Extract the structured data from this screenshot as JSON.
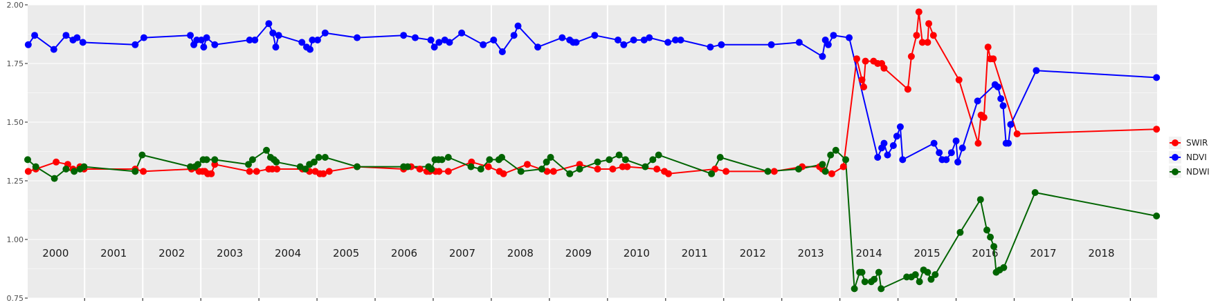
{
  "chart_data": {
    "type": "line",
    "title": "",
    "xlabel": "",
    "ylabel": "",
    "ylim": [
      0.75,
      2.0
    ],
    "xlim": [
      1999.52,
      2018.96
    ],
    "y_ticks": [
      "0.75",
      "1.00",
      "1.25",
      "1.50",
      "1.75",
      "2.00"
    ],
    "y_tick_values": [
      0.75,
      1.0,
      1.25,
      1.5,
      1.75,
      2.0
    ],
    "year_labels": [
      "2000",
      "2001",
      "2002",
      "2003",
      "2004",
      "2005",
      "2006",
      "2007",
      "2008",
      "2009",
      "2010",
      "2011",
      "2012",
      "2013",
      "2014",
      "2015",
      "2016",
      "2017",
      "2018"
    ],
    "grid": true,
    "legend_position": "right",
    "series": [
      {
        "name": "SWIR",
        "color": "#ff0000",
        "points": [
          [
            1999.53,
            1.29
          ],
          [
            1999.66,
            1.3
          ],
          [
            2000.01,
            1.33
          ],
          [
            2000.21,
            1.32
          ],
          [
            2000.3,
            1.3
          ],
          [
            2000.42,
            1.31
          ],
          [
            2000.49,
            1.3
          ],
          [
            2001.37,
            1.3
          ],
          [
            2001.51,
            1.29
          ],
          [
            2002.34,
            1.3
          ],
          [
            2002.47,
            1.29
          ],
          [
            2002.53,
            1.29
          ],
          [
            2002.57,
            1.29
          ],
          [
            2002.62,
            1.28
          ],
          [
            2002.68,
            1.28
          ],
          [
            2002.74,
            1.32
          ],
          [
            2003.34,
            1.29
          ],
          [
            2003.46,
            1.29
          ],
          [
            2003.67,
            1.3
          ],
          [
            2003.73,
            1.3
          ],
          [
            2003.81,
            1.3
          ],
          [
            2004.25,
            1.3
          ],
          [
            2004.37,
            1.29
          ],
          [
            2004.47,
            1.29
          ],
          [
            2004.55,
            1.28
          ],
          [
            2004.61,
            1.28
          ],
          [
            2004.71,
            1.29
          ],
          [
            2005.19,
            1.31
          ],
          [
            2005.99,
            1.3
          ],
          [
            2006.12,
            1.31
          ],
          [
            2006.27,
            1.3
          ],
          [
            2006.39,
            1.29
          ],
          [
            2006.44,
            1.29
          ],
          [
            2006.54,
            1.29
          ],
          [
            2006.6,
            1.29
          ],
          [
            2006.76,
            1.29
          ],
          [
            2007.16,
            1.33
          ],
          [
            2007.45,
            1.31
          ],
          [
            2007.64,
            1.29
          ],
          [
            2007.71,
            1.28
          ],
          [
            2008.12,
            1.32
          ],
          [
            2008.46,
            1.29
          ],
          [
            2008.57,
            1.29
          ],
          [
            2009.02,
            1.32
          ],
          [
            2009.33,
            1.3
          ],
          [
            2009.59,
            1.3
          ],
          [
            2009.76,
            1.31
          ],
          [
            2009.84,
            1.31
          ],
          [
            2010.35,
            1.3
          ],
          [
            2010.48,
            1.29
          ],
          [
            2010.55,
            1.28
          ],
          [
            2011.35,
            1.3
          ],
          [
            2011.54,
            1.29
          ],
          [
            2012.37,
            1.29
          ],
          [
            2012.85,
            1.31
          ],
          [
            2013.15,
            1.31
          ],
          [
            2013.2,
            1.3
          ],
          [
            2013.36,
            1.28
          ],
          [
            2013.56,
            1.31
          ],
          [
            2013.79,
            1.77
          ],
          [
            2013.88,
            1.68
          ],
          [
            2013.91,
            1.65
          ],
          [
            2013.94,
            1.76
          ],
          [
            2014.08,
            1.76
          ],
          [
            2014.15,
            1.75
          ],
          [
            2014.22,
            1.75
          ],
          [
            2014.26,
            1.73
          ],
          [
            2014.67,
            1.64
          ],
          [
            2014.73,
            1.78
          ],
          [
            2014.82,
            1.87
          ],
          [
            2014.86,
            1.97
          ],
          [
            2014.92,
            1.84
          ],
          [
            2015.01,
            1.84
          ],
          [
            2015.03,
            1.92
          ],
          [
            2015.11,
            1.87
          ],
          [
            2015.55,
            1.68
          ],
          [
            2015.88,
            1.41
          ],
          [
            2015.93,
            1.53
          ],
          [
            2015.98,
            1.52
          ],
          [
            2016.05,
            1.82
          ],
          [
            2016.09,
            1.77
          ],
          [
            2016.14,
            1.77
          ],
          [
            2016.55,
            1.45
          ],
          [
            2018.95,
            1.47
          ]
        ]
      },
      {
        "name": "NDVI",
        "color": "#0000ff",
        "points": [
          [
            1999.53,
            1.83
          ],
          [
            1999.64,
            1.87
          ],
          [
            1999.97,
            1.81
          ],
          [
            2000.18,
            1.87
          ],
          [
            2000.3,
            1.85
          ],
          [
            2000.37,
            1.86
          ],
          [
            2000.47,
            1.84
          ],
          [
            2001.37,
            1.83
          ],
          [
            2001.52,
            1.86
          ],
          [
            2002.32,
            1.87
          ],
          [
            2002.38,
            1.83
          ],
          [
            2002.43,
            1.85
          ],
          [
            2002.51,
            1.85
          ],
          [
            2002.55,
            1.82
          ],
          [
            2002.6,
            1.86
          ],
          [
            2002.74,
            1.83
          ],
          [
            2003.34,
            1.85
          ],
          [
            2003.43,
            1.85
          ],
          [
            2003.67,
            1.92
          ],
          [
            2003.74,
            1.88
          ],
          [
            2003.79,
            1.82
          ],
          [
            2003.84,
            1.87
          ],
          [
            2004.24,
            1.84
          ],
          [
            2004.32,
            1.82
          ],
          [
            2004.38,
            1.81
          ],
          [
            2004.42,
            1.85
          ],
          [
            2004.51,
            1.85
          ],
          [
            2004.64,
            1.88
          ],
          [
            2005.19,
            1.86
          ],
          [
            2005.99,
            1.87
          ],
          [
            2006.19,
            1.86
          ],
          [
            2006.46,
            1.85
          ],
          [
            2006.52,
            1.82
          ],
          [
            2006.6,
            1.84
          ],
          [
            2006.7,
            1.85
          ],
          [
            2006.78,
            1.84
          ],
          [
            2006.99,
            1.88
          ],
          [
            2007.36,
            1.83
          ],
          [
            2007.54,
            1.85
          ],
          [
            2007.69,
            1.8
          ],
          [
            2007.89,
            1.87
          ],
          [
            2007.96,
            1.91
          ],
          [
            2008.3,
            1.82
          ],
          [
            2008.72,
            1.86
          ],
          [
            2008.85,
            1.85
          ],
          [
            2008.91,
            1.84
          ],
          [
            2008.96,
            1.84
          ],
          [
            2009.28,
            1.87
          ],
          [
            2009.68,
            1.85
          ],
          [
            2009.78,
            1.83
          ],
          [
            2009.95,
            1.85
          ],
          [
            2010.13,
            1.85
          ],
          [
            2010.22,
            1.86
          ],
          [
            2010.54,
            1.84
          ],
          [
            2010.67,
            1.85
          ],
          [
            2010.76,
            1.85
          ],
          [
            2011.27,
            1.82
          ],
          [
            2011.46,
            1.83
          ],
          [
            2012.32,
            1.83
          ],
          [
            2012.8,
            1.84
          ],
          [
            2013.2,
            1.78
          ],
          [
            2013.25,
            1.85
          ],
          [
            2013.3,
            1.83
          ],
          [
            2013.39,
            1.87
          ],
          [
            2013.66,
            1.86
          ],
          [
            2014.15,
            1.35
          ],
          [
            2014.22,
            1.39
          ],
          [
            2014.26,
            1.41
          ],
          [
            2014.32,
            1.36
          ],
          [
            2014.42,
            1.4
          ],
          [
            2014.48,
            1.44
          ],
          [
            2014.54,
            1.48
          ],
          [
            2014.58,
            1.34
          ],
          [
            2015.12,
            1.41
          ],
          [
            2015.21,
            1.37
          ],
          [
            2015.26,
            1.34
          ],
          [
            2015.33,
            1.34
          ],
          [
            2015.42,
            1.37
          ],
          [
            2015.5,
            1.42
          ],
          [
            2015.53,
            1.33
          ],
          [
            2015.61,
            1.39
          ],
          [
            2015.87,
            1.59
          ],
          [
            2016.17,
            1.66
          ],
          [
            2016.22,
            1.65
          ],
          [
            2016.27,
            1.6
          ],
          [
            2016.31,
            1.57
          ],
          [
            2016.36,
            1.41
          ],
          [
            2016.4,
            1.41
          ],
          [
            2016.44,
            1.49
          ],
          [
            2016.88,
            1.72
          ],
          [
            2018.95,
            1.69
          ]
        ]
      },
      {
        "name": "NDWI",
        "color": "#006400",
        "points": [
          [
            1999.52,
            1.34
          ],
          [
            1999.66,
            1.31
          ],
          [
            1999.98,
            1.26
          ],
          [
            2000.18,
            1.3
          ],
          [
            2000.32,
            1.29
          ],
          [
            2000.42,
            1.3
          ],
          [
            2000.49,
            1.31
          ],
          [
            2001.37,
            1.29
          ],
          [
            2001.49,
            1.36
          ],
          [
            2002.32,
            1.31
          ],
          [
            2002.4,
            1.31
          ],
          [
            2002.45,
            1.32
          ],
          [
            2002.54,
            1.34
          ],
          [
            2002.6,
            1.34
          ],
          [
            2002.74,
            1.34
          ],
          [
            2003.32,
            1.32
          ],
          [
            2003.39,
            1.34
          ],
          [
            2003.63,
            1.38
          ],
          [
            2003.7,
            1.35
          ],
          [
            2003.76,
            1.34
          ],
          [
            2003.8,
            1.33
          ],
          [
            2004.21,
            1.31
          ],
          [
            2004.3,
            1.3
          ],
          [
            2004.37,
            1.32
          ],
          [
            2004.45,
            1.33
          ],
          [
            2004.53,
            1.35
          ],
          [
            2004.64,
            1.35
          ],
          [
            2005.19,
            1.31
          ],
          [
            2005.99,
            1.31
          ],
          [
            2006.06,
            1.31
          ],
          [
            2006.42,
            1.31
          ],
          [
            2006.47,
            1.3
          ],
          [
            2006.53,
            1.34
          ],
          [
            2006.59,
            1.34
          ],
          [
            2006.65,
            1.34
          ],
          [
            2006.76,
            1.35
          ],
          [
            2007.15,
            1.31
          ],
          [
            2007.32,
            1.3
          ],
          [
            2007.47,
            1.34
          ],
          [
            2007.63,
            1.34
          ],
          [
            2007.68,
            1.35
          ],
          [
            2008.01,
            1.29
          ],
          [
            2008.37,
            1.3
          ],
          [
            2008.45,
            1.33
          ],
          [
            2008.52,
            1.35
          ],
          [
            2008.85,
            1.28
          ],
          [
            2009.02,
            1.3
          ],
          [
            2009.33,
            1.33
          ],
          [
            2009.53,
            1.34
          ],
          [
            2009.7,
            1.36
          ],
          [
            2009.81,
            1.34
          ],
          [
            2010.15,
            1.31
          ],
          [
            2010.28,
            1.34
          ],
          [
            2010.38,
            1.36
          ],
          [
            2011.29,
            1.28
          ],
          [
            2011.44,
            1.35
          ],
          [
            2012.26,
            1.29
          ],
          [
            2012.79,
            1.3
          ],
          [
            2013.2,
            1.32
          ],
          [
            2013.25,
            1.29
          ],
          [
            2013.34,
            1.36
          ],
          [
            2013.43,
            1.38
          ],
          [
            2013.6,
            1.34
          ],
          [
            2013.75,
            0.79
          ],
          [
            2013.84,
            0.86
          ],
          [
            2013.88,
            0.86
          ],
          [
            2013.93,
            0.82
          ],
          [
            2014.04,
            0.82
          ],
          [
            2014.09,
            0.83
          ],
          [
            2014.17,
            0.86
          ],
          [
            2014.21,
            0.79
          ],
          [
            2014.65,
            0.84
          ],
          [
            2014.73,
            0.84
          ],
          [
            2014.8,
            0.85
          ],
          [
            2014.87,
            0.82
          ],
          [
            2014.94,
            0.87
          ],
          [
            2015.01,
            0.86
          ],
          [
            2015.07,
            0.83
          ],
          [
            2015.14,
            0.85
          ],
          [
            2015.57,
            1.03
          ],
          [
            2015.92,
            1.17
          ],
          [
            2016.03,
            1.04
          ],
          [
            2016.09,
            1.01
          ],
          [
            2016.15,
            0.97
          ],
          [
            2016.19,
            0.86
          ],
          [
            2016.25,
            0.87
          ],
          [
            2016.32,
            0.88
          ],
          [
            2016.86,
            1.2
          ],
          [
            2018.95,
            1.1
          ]
        ]
      }
    ]
  }
}
